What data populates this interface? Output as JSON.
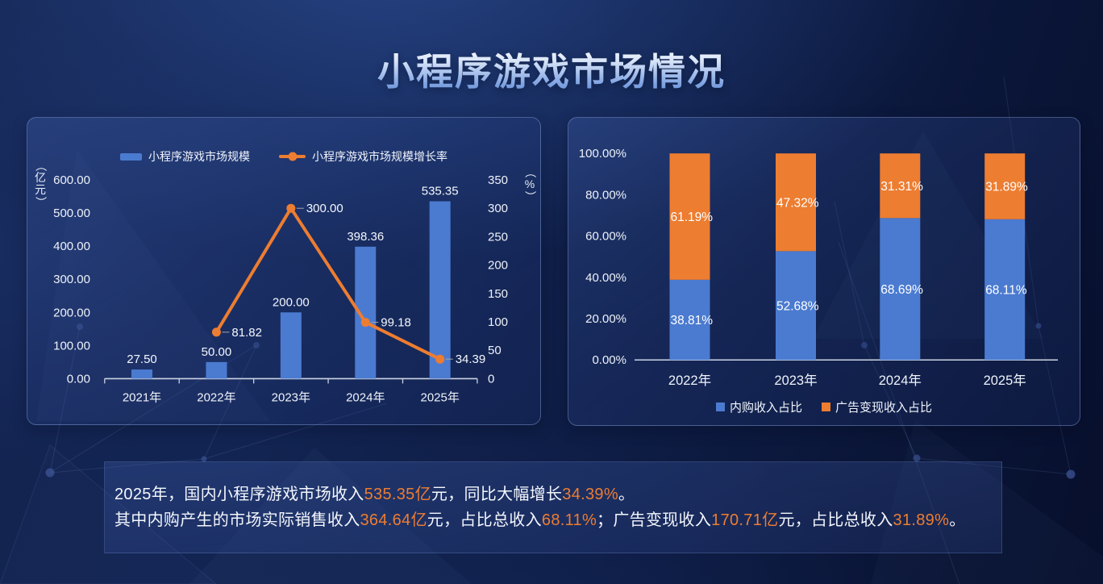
{
  "page_title": "小程序游戏市场情况",
  "colors": {
    "bar_blue": "#4B7BD0",
    "accent_orange": "#ED7D31",
    "axis_line": "#CBD3E2",
    "label_white": "#F4F7FC",
    "leader_gray": "#A6A6A6"
  },
  "chart_data": [
    {
      "type": "bar",
      "name": "market-size-combo-chart",
      "title": "",
      "categories": [
        "2021年",
        "2022年",
        "2023年",
        "2024年",
        "2025年"
      ],
      "series": [
        {
          "name": "小程序游戏市场规模",
          "type": "bar",
          "axis": "left",
          "color": "#4B7BD0",
          "values": [
            27.5,
            50.0,
            200.0,
            398.36,
            535.35
          ],
          "labels": [
            "27.50",
            "50.00",
            "200.00",
            "398.36",
            "535.35"
          ]
        },
        {
          "name": "小程序游戏市场规模增长率",
          "type": "line",
          "axis": "right",
          "color": "#ED7D31",
          "values": [
            null,
            81.82,
            300.0,
            99.18,
            34.39
          ],
          "labels": [
            null,
            "81.82",
            "300.00",
            "99.18",
            "34.39"
          ]
        }
      ],
      "left_axis": {
        "title": "（亿元）",
        "min": 0,
        "max": 600,
        "ticks": [
          "0.00",
          "100.00",
          "200.00",
          "300.00",
          "400.00",
          "500.00",
          "600.00"
        ]
      },
      "right_axis": {
        "title": "（%）",
        "min": 0,
        "max": 350,
        "ticks": [
          "0",
          "50",
          "100",
          "150",
          "200",
          "250",
          "300",
          "350"
        ]
      },
      "legend_position": "top",
      "grid": false
    },
    {
      "type": "bar",
      "name": "revenue-share-stacked-chart",
      "title": "",
      "stacked": true,
      "categories": [
        "2022年",
        "2023年",
        "2024年",
        "2025年"
      ],
      "series": [
        {
          "name": "内购收入占比",
          "color": "#4B7BD0",
          "values": [
            38.81,
            52.68,
            68.69,
            68.11
          ],
          "labels": [
            "38.81%",
            "52.68%",
            "68.69%",
            "68.11%"
          ]
        },
        {
          "name": "广告变现收入占比",
          "color": "#ED7D31",
          "values": [
            61.19,
            47.32,
            31.31,
            31.89
          ],
          "labels": [
            "61.19%",
            "47.32%",
            "31.31%",
            "31.89%"
          ]
        }
      ],
      "y_axis": {
        "min": 0,
        "max": 100,
        "ticks": [
          "0.00%",
          "20.00%",
          "40.00%",
          "60.00%",
          "80.00%",
          "100.00%"
        ]
      },
      "legend_position": "bottom",
      "grid": false
    }
  ],
  "summary": {
    "lines": [
      {
        "segments": [
          {
            "text": "2025年，国内小程序游戏市场收入",
            "highlight": false
          },
          {
            "text": "535.35亿",
            "highlight": true
          },
          {
            "text": "元，同比大幅增长",
            "highlight": false
          },
          {
            "text": "34.39%",
            "highlight": true
          },
          {
            "text": "。",
            "highlight": false
          }
        ]
      },
      {
        "segments": [
          {
            "text": "其中内购产生的市场实际销售收入",
            "highlight": false
          },
          {
            "text": "364.64亿",
            "highlight": true
          },
          {
            "text": "元，占比总收入",
            "highlight": false
          },
          {
            "text": "68.11%",
            "highlight": true
          },
          {
            "text": "；广告变现收入",
            "highlight": false
          },
          {
            "text": "170.71亿",
            "highlight": true
          },
          {
            "text": "元，占比总收入",
            "highlight": false
          },
          {
            "text": "31.89%",
            "highlight": true
          },
          {
            "text": "。",
            "highlight": false
          }
        ]
      }
    ]
  }
}
